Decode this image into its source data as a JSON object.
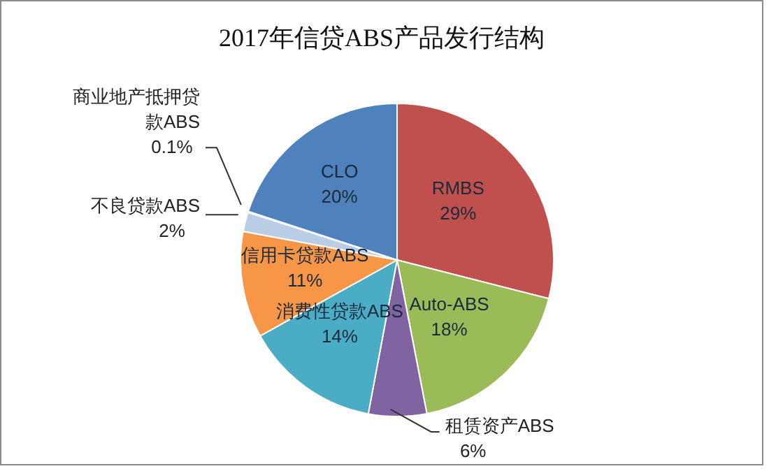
{
  "chart_data": {
    "type": "pie",
    "title": "2017年信贷ABS产品发行结构",
    "categories": [
      "RMBS",
      "Auto-ABS",
      "租赁资产ABS",
      "消费性贷款ABS",
      "信用卡贷款ABS",
      "不良贷款ABS",
      "商业地产抵押贷款ABS",
      "CLO"
    ],
    "values": [
      29,
      18,
      6,
      14,
      11,
      2,
      0.1,
      20
    ],
    "value_labels": [
      "29%",
      "18%",
      "6%",
      "14%",
      "11%",
      "2%",
      "0.1%",
      "20%"
    ],
    "colors": [
      "#c0504d",
      "#9bbb59",
      "#8064a2",
      "#4bacc6",
      "#f79646",
      "#b9cde5",
      "#e6ecf5",
      "#4f81bd"
    ],
    "legend": false
  }
}
